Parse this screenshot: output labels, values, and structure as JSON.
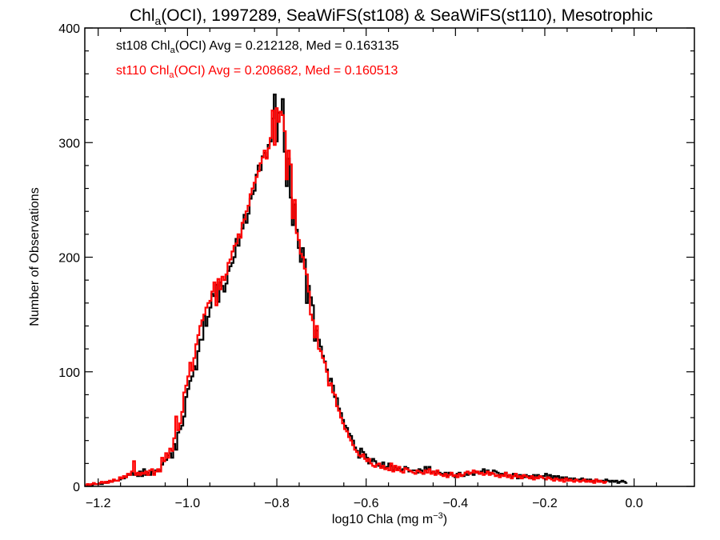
{
  "chart_data": {
    "type": "step-histogram",
    "title": {
      "pre": "Chl",
      "sub": "a",
      "post": "(OCI), 1997289, SeaWiFS(st108) & SeaWiFS(st110), Mesotrophic"
    },
    "xlabel": {
      "pre": "log10 Chla (mg m",
      "sup": "−3",
      "post": ")"
    },
    "ylabel": "Number of Observations",
    "xlim": [
      -1.23,
      0.135
    ],
    "ylim": [
      0,
      400
    ],
    "xticks": [
      -1.2,
      -1.0,
      -0.8,
      -0.6,
      -0.4,
      -0.2,
      0.0
    ],
    "xtick_labels": [
      "−1.2",
      "−1.0",
      "−0.8",
      "−0.6",
      "−0.4",
      "−0.2",
      "0.0"
    ],
    "yticks": [
      0,
      100,
      200,
      300,
      400
    ],
    "ytick_labels": [
      "0",
      "100",
      "200",
      "300",
      "400"
    ],
    "bin_start": -1.23,
    "bin_width": 0.0045,
    "series": [
      {
        "name": "st108",
        "color": "#000000",
        "stats": {
          "pre": "st108 Chl",
          "sub": "a",
          "post": "(OCI) Avg = 0.212128, Med = 0.163135"
        },
        "values": [
          1,
          1,
          1,
          1,
          2,
          2,
          2,
          2,
          2,
          3,
          3,
          4,
          4,
          4,
          5,
          5,
          5,
          6,
          7,
          7,
          8,
          10,
          10,
          12,
          10,
          11,
          9,
          13,
          9,
          15,
          10,
          12,
          10,
          13,
          11,
          14,
          13,
          14,
          19,
          22,
          23,
          27,
          29,
          25,
          37,
          32,
          47,
          50,
          53,
          61,
          78,
          85,
          92,
          96,
          105,
          102,
          118,
          128,
          128,
          149,
          140,
          148,
          156,
          168,
          166,
          176,
          161,
          178,
          175,
          170,
          177,
          188,
          192,
          195,
          200,
          216,
          210,
          218,
          225,
          237,
          230,
          238,
          251,
          255,
          258,
          272,
          280,
          276,
          288,
          291,
          287,
          298,
          301,
          321,
          342,
          301,
          326,
          327,
          338,
          292,
          262,
          286,
          252,
          228,
          246,
          224,
          208,
          196,
          208,
          198,
          160,
          175,
          165,
          158,
          127,
          136,
          128,
          122,
          114,
          109,
          102,
          92,
          94,
          88,
          78,
          77,
          68,
          64,
          58,
          53,
          51,
          46,
          44,
          40,
          34,
          31,
          25,
          33,
          30,
          28,
          25,
          20,
          22,
          24,
          22,
          19,
          18,
          17,
          21,
          16,
          17,
          20,
          18,
          14,
          17,
          15,
          16,
          14,
          15,
          17,
          16,
          13,
          13,
          14,
          14,
          12,
          15,
          14,
          11,
          17,
          15,
          17,
          12,
          13,
          11,
          13,
          12,
          11,
          10,
          12,
          9,
          12,
          11,
          9,
          8,
          11,
          12,
          10,
          9,
          12,
          10,
          11,
          12,
          10,
          13,
          12,
          11,
          13,
          15,
          12,
          14,
          12,
          11,
          14,
          13,
          12,
          10,
          11,
          10,
          12,
          9,
          10,
          8,
          11,
          9,
          7,
          10,
          9,
          8,
          10,
          8,
          9,
          7,
          10,
          8,
          10,
          9,
          8,
          9,
          11,
          8,
          10,
          7,
          9,
          8,
          9,
          6,
          8,
          7,
          8,
          6,
          7,
          5,
          7,
          6,
          5,
          6,
          7,
          5,
          6,
          5,
          6,
          4,
          5,
          6,
          5,
          4,
          5,
          4,
          6,
          5,
          4,
          5,
          4,
          5,
          3,
          4,
          5,
          4,
          3
        ]
      },
      {
        "name": "st110",
        "color": "#ff0000",
        "stats": {
          "pre": "st110 Chl",
          "sub": "a",
          "post": "(OCI) Avg = 0.208682, Med = 0.160513"
        },
        "values": [
          1,
          2,
          1,
          2,
          3,
          2,
          2,
          3,
          4,
          3,
          4,
          3,
          5,
          4,
          6,
          5,
          5,
          8,
          7,
          9,
          8,
          11,
          10,
          13,
          22,
          10,
          12,
          10,
          12,
          11,
          13,
          10,
          14,
          15,
          10,
          13,
          15,
          13,
          25,
          22,
          29,
          25,
          33,
          31,
          42,
          61,
          49,
          55,
          65,
          82,
          88,
          96,
          108,
          101,
          112,
          124,
          132,
          140,
          145,
          150,
          156,
          160,
          162,
          170,
          178,
          158,
          181,
          172,
          183,
          180,
          185,
          195,
          198,
          205,
          210,
          212,
          220,
          217,
          230,
          233,
          240,
          245,
          255,
          260,
          265,
          270,
          275,
          282,
          287,
          293,
          286,
          295,
          304,
          328,
          298,
          330,
          318,
          327,
          324,
          310,
          268,
          293,
          281,
          234,
          250,
          221,
          215,
          203,
          200,
          190,
          185,
          170,
          150,
          145,
          130,
          140,
          120,
          118,
          112,
          108,
          100,
          88,
          90,
          82,
          80,
          70,
          66,
          60,
          55,
          50,
          48,
          43,
          40,
          36,
          32,
          30,
          27,
          26,
          28,
          24,
          22,
          24,
          20,
          18,
          17,
          19,
          20,
          16,
          18,
          15,
          16,
          14,
          20,
          13,
          18,
          14,
          17,
          13,
          12,
          16,
          15,
          14,
          13,
          12,
          11,
          14,
          13,
          12,
          11,
          14,
          12,
          15,
          11,
          13,
          10,
          14,
          11,
          10,
          9,
          11,
          8,
          10,
          12,
          9,
          10,
          8,
          11,
          9,
          10,
          12,
          13,
          11,
          12,
          14,
          12,
          13,
          11,
          12,
          10,
          11,
          13,
          10,
          12,
          11,
          9,
          10,
          8,
          10,
          9,
          12,
          8,
          10,
          7,
          9,
          11,
          8,
          9,
          7,
          10,
          9,
          8,
          7,
          9,
          6,
          8,
          7,
          9,
          8,
          7,
          6,
          8,
          7,
          6,
          5,
          7,
          6,
          5,
          6,
          4,
          7,
          5,
          6,
          5,
          4,
          6,
          5,
          4,
          5,
          6,
          4,
          5,
          4,
          5,
          3,
          6,
          4,
          5,
          4,
          3,
          4
        ]
      }
    ]
  }
}
